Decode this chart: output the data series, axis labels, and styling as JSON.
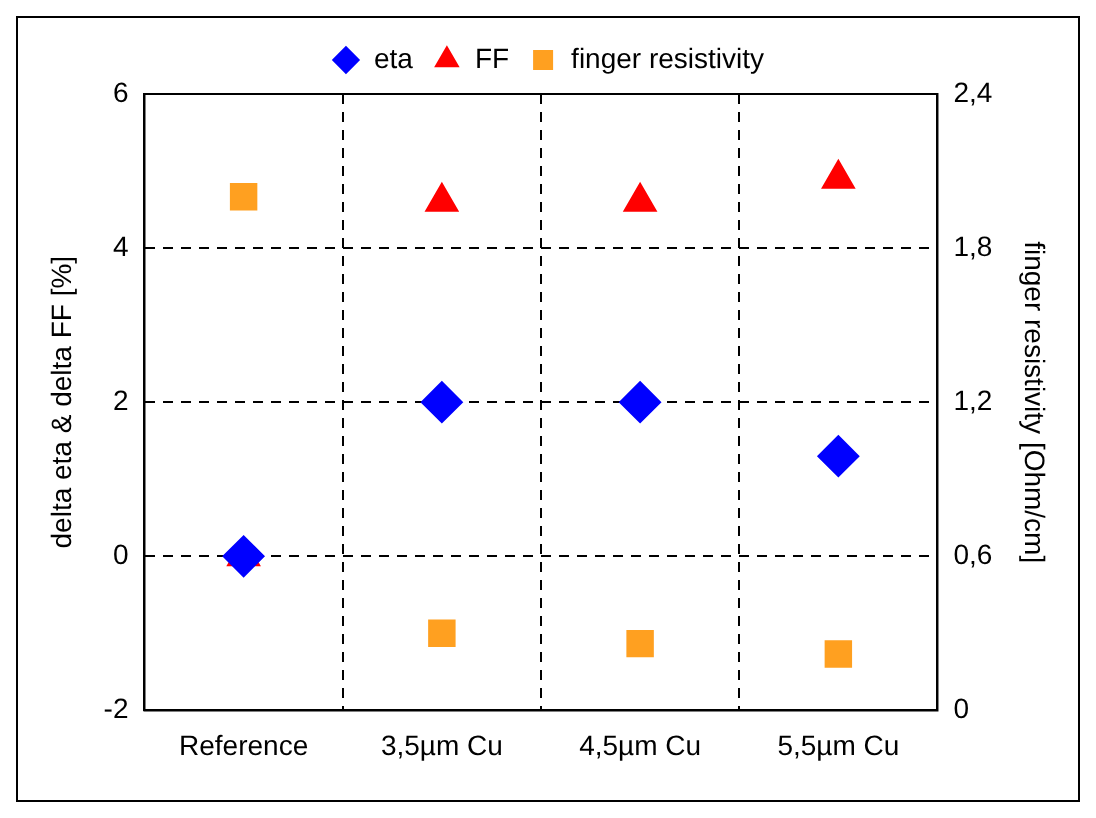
{
  "chart_data": {
    "type": "scatter",
    "categories": [
      "Reference",
      "3,5µm Cu",
      "4,5µm Cu",
      "5,5µm Cu"
    ],
    "ylabel": "delta eta & delta FF [%]",
    "y2label": "finger resistivity [Ohm/cm]",
    "ylim": [
      -2,
      6
    ],
    "yticks": [
      -2,
      0,
      2,
      4,
      6
    ],
    "y2lim": [
      0,
      2.4
    ],
    "y2ticks": [
      {
        "value": 0,
        "label": "0"
      },
      {
        "value": 0.6,
        "label": "0,6"
      },
      {
        "value": 1.2,
        "label": "1,2"
      },
      {
        "value": 1.8,
        "label": "1,8"
      },
      {
        "value": 2.4,
        "label": "2,4"
      }
    ],
    "grid": true,
    "legend": "top",
    "series": [
      {
        "name": "eta",
        "color": "#0000ff",
        "marker": "diamond",
        "values": [
          0,
          2,
          2,
          1.3
        ]
      },
      {
        "name": "FF",
        "color": "#ff0000",
        "marker": "triangle",
        "values": [
          0,
          4.6,
          4.6,
          4.9
        ]
      },
      {
        "name": "finger resistivity",
        "color": "#ffa020",
        "marker": "square",
        "axis": "y2",
        "values": [
          2.0,
          0.3,
          0.26,
          0.22
        ]
      }
    ]
  }
}
